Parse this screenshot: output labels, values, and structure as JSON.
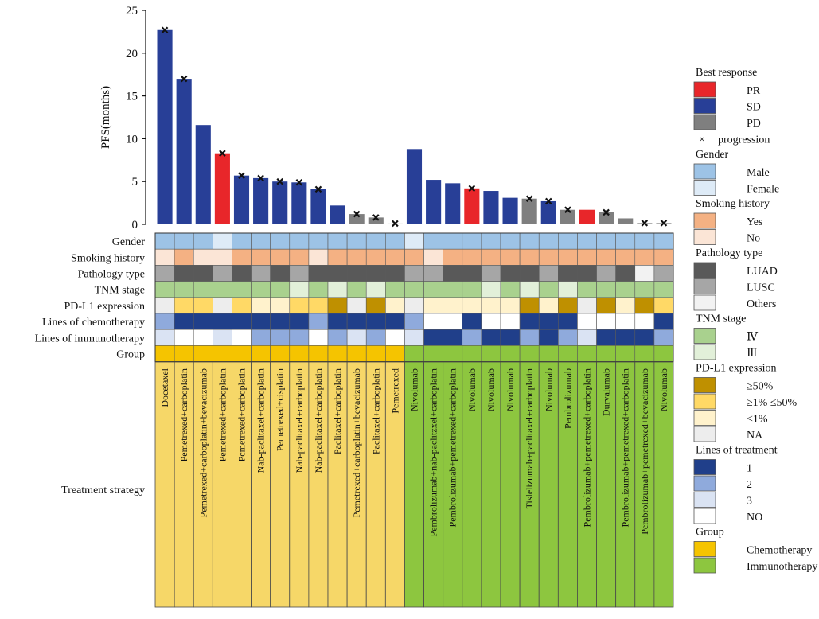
{
  "chart_data": {
    "type": "bar",
    "ylabel": "PFS(months)",
    "ylim": [
      0,
      25
    ],
    "yticks": [
      0,
      5,
      10,
      15,
      20,
      25
    ],
    "patients": [
      {
        "pfs": 22.7,
        "resp": "SD",
        "prog": true,
        "gender": "M",
        "smoke": "N",
        "path": "LUSC",
        "tnm": "IV",
        "pdl1": "NA",
        "chemo": 2,
        "immuno": 3,
        "group": "C",
        "strategy": "Docetaxel"
      },
      {
        "pfs": 17.0,
        "resp": "SD",
        "prog": true,
        "gender": "M",
        "smoke": "Y",
        "path": "LUAD",
        "tnm": "IV",
        "pdl1": "1-50",
        "chemo": 1,
        "immuno": "NO",
        "group": "C",
        "strategy": "Pemetrexed+carboplatin"
      },
      {
        "pfs": 11.6,
        "resp": "SD",
        "prog": false,
        "gender": "M",
        "smoke": "N",
        "path": "LUAD",
        "tnm": "IV",
        "pdl1": "1-50",
        "chemo": 1,
        "immuno": "NO",
        "group": "C",
        "strategy": "Pemetrexed+carboplatin+bevacizumab"
      },
      {
        "pfs": 8.3,
        "resp": "PR",
        "prog": true,
        "gender": "F",
        "smoke": "N",
        "path": "LUSC",
        "tnm": "IV",
        "pdl1": "NA",
        "chemo": 1,
        "immuno": 3,
        "group": "C",
        "strategy": "Pemetrexed+carboplatin"
      },
      {
        "pfs": 5.7,
        "resp": "SD",
        "prog": true,
        "gender": "M",
        "smoke": "Y",
        "path": "LUAD",
        "tnm": "IV",
        "pdl1": "1-50",
        "chemo": 1,
        "immuno": "NO",
        "group": "C",
        "strategy": "Pcmetrexed+carboplatin"
      },
      {
        "pfs": 5.4,
        "resp": "SD",
        "prog": true,
        "gender": "M",
        "smoke": "Y",
        "path": "LUSC",
        "tnm": "IV",
        "pdl1": "<1",
        "chemo": 1,
        "immuno": 2,
        "group": "C",
        "strategy": "Nab-paclitaxel+carboplatin"
      },
      {
        "pfs": 5.0,
        "resp": "SD",
        "prog": true,
        "gender": "M",
        "smoke": "Y",
        "path": "LUAD",
        "tnm": "IV",
        "pdl1": "<1",
        "chemo": 1,
        "immuno": 2,
        "group": "C",
        "strategy": "Pemetrexed+cisplatin"
      },
      {
        "pfs": 4.9,
        "resp": "SD",
        "prog": true,
        "gender": "M",
        "smoke": "Y",
        "path": "LUSC",
        "tnm": "III",
        "pdl1": "1-50",
        "chemo": 1,
        "immuno": 2,
        "group": "C",
        "strategy": "Nab-paclitaxel+carboplatin"
      },
      {
        "pfs": 4.1,
        "resp": "SD",
        "prog": true,
        "gender": "M",
        "smoke": "N",
        "path": "LUAD",
        "tnm": "IV",
        "pdl1": "1-50",
        "chemo": 2,
        "immuno": "NO",
        "group": "C",
        "strategy": "Nab-paclitaxel+carboplatin"
      },
      {
        "pfs": 2.2,
        "resp": "SD",
        "prog": false,
        "gender": "M",
        "smoke": "Y",
        "path": "LUAD",
        "tnm": "III",
        "pdl1": ">=50",
        "chemo": 1,
        "immuno": 2,
        "group": "C",
        "strategy": "Paclitaxel+carboplatin"
      },
      {
        "pfs": 1.2,
        "resp": "PD",
        "prog": true,
        "gender": "M",
        "smoke": "Y",
        "path": "LUAD",
        "tnm": "IV",
        "pdl1": "NA",
        "chemo": 1,
        "immuno": 3,
        "group": "C",
        "strategy": "Pemetrexed+carboplatin+bevacizumab"
      },
      {
        "pfs": 0.8,
        "resp": "PD",
        "prog": true,
        "gender": "M",
        "smoke": "Y",
        "path": "LUAD",
        "tnm": "III",
        "pdl1": ">=50",
        "chemo": 1,
        "immuno": 2,
        "group": "C",
        "strategy": "Paclitaxel+carboplatin"
      },
      {
        "pfs": 0.1,
        "resp": "PD",
        "prog": true,
        "gender": "M",
        "smoke": "Y",
        "path": "LUAD",
        "tnm": "IV",
        "pdl1": "<1",
        "chemo": 1,
        "immuno": "NO",
        "group": "C",
        "strategy": "Pemetrexed"
      },
      {
        "pfs": 8.8,
        "resp": "SD",
        "prog": false,
        "gender": "F",
        "smoke": "Y",
        "path": "LUSC",
        "tnm": "IV",
        "pdl1": "NA",
        "chemo": 2,
        "immuno": 3,
        "group": "I",
        "strategy": "Nivolumab"
      },
      {
        "pfs": 5.2,
        "resp": "SD",
        "prog": false,
        "gender": "M",
        "smoke": "N",
        "path": "LUSC",
        "tnm": "IV",
        "pdl1": "<1",
        "chemo": "NO",
        "immuno": 1,
        "group": "I",
        "strategy": "Pembrolizumab+nab-paclitzxel+carboplatin"
      },
      {
        "pfs": 4.8,
        "resp": "SD",
        "prog": false,
        "gender": "M",
        "smoke": "Y",
        "path": "LUAD",
        "tnm": "IV",
        "pdl1": "<1",
        "chemo": "NO",
        "immuno": 1,
        "group": "I",
        "strategy": "Pembrolizumab+pemetrexed+carboplatin"
      },
      {
        "pfs": 4.2,
        "resp": "PR",
        "prog": true,
        "gender": "M",
        "smoke": "Y",
        "path": "LUAD",
        "tnm": "IV",
        "pdl1": "<1",
        "chemo": 1,
        "immuno": 2,
        "group": "I",
        "strategy": "Nivolumab"
      },
      {
        "pfs": 3.9,
        "resp": "SD",
        "prog": false,
        "gender": "M",
        "smoke": "Y",
        "path": "LUSC",
        "tnm": "III",
        "pdl1": "<1",
        "chemo": "NO",
        "immuno": 1,
        "group": "I",
        "strategy": "Nivolumab"
      },
      {
        "pfs": 3.1,
        "resp": "SD",
        "prog": false,
        "gender": "M",
        "smoke": "Y",
        "path": "LUAD",
        "tnm": "IV",
        "pdl1": "<1",
        "chemo": "NO",
        "immuno": 1,
        "group": "I",
        "strategy": "Nivolumab"
      },
      {
        "pfs": 3.0,
        "resp": "PD",
        "prog": true,
        "gender": "M",
        "smoke": "Y",
        "path": "LUAD",
        "tnm": "III",
        "pdl1": ">=50",
        "chemo": 1,
        "immuno": 2,
        "group": "I",
        "strategy": "Tislelizumab+paclitaxel+carboplatin"
      },
      {
        "pfs": 2.7,
        "resp": "SD",
        "prog": true,
        "gender": "M",
        "smoke": "Y",
        "path": "LUSC",
        "tnm": "IV",
        "pdl1": "<1",
        "chemo": 1,
        "immuno": 1,
        "group": "I",
        "strategy": "Nivolumab"
      },
      {
        "pfs": 1.7,
        "resp": "PD",
        "prog": true,
        "gender": "M",
        "smoke": "Y",
        "path": "LUAD",
        "tnm": "III",
        "pdl1": ">=50",
        "chemo": 1,
        "immuno": 2,
        "group": "I",
        "strategy": "Pembrolizumab"
      },
      {
        "pfs": 1.7,
        "resp": "PR",
        "prog": false,
        "gender": "M",
        "smoke": "Y",
        "path": "LUAD",
        "tnm": "IV",
        "pdl1": "NA",
        "chemo": "NO",
        "immuno": 3,
        "group": "I",
        "strategy": "Pembrolizumab+pemetrexed+carboplatin"
      },
      {
        "pfs": 1.4,
        "resp": "PD",
        "prog": true,
        "gender": "M",
        "smoke": "Y",
        "path": "LUSC",
        "tnm": "IV",
        "pdl1": ">=50",
        "chemo": "NO",
        "immuno": 1,
        "group": "I",
        "strategy": "Durvalumab"
      },
      {
        "pfs": 0.7,
        "resp": "PD",
        "prog": false,
        "gender": "M",
        "smoke": "Y",
        "path": "LUAD",
        "tnm": "IV",
        "pdl1": "<1",
        "chemo": "NO",
        "immuno": 1,
        "group": "I",
        "strategy": "Pembrolizumab+pemetrexed+carboplatin"
      },
      {
        "pfs": 0.15,
        "resp": "PD",
        "prog": true,
        "gender": "M",
        "smoke": "Y",
        "path": "Others",
        "tnm": "IV",
        "pdl1": ">=50",
        "chemo": "NO",
        "immuno": 1,
        "group": "I",
        "strategy": "Pembrolizumab+pemetrexed+bevacizumab"
      },
      {
        "pfs": 0.15,
        "resp": "PD",
        "prog": true,
        "gender": "M",
        "smoke": "Y",
        "path": "LUSC",
        "tnm": "IV",
        "pdl1": "1-50",
        "chemo": 1,
        "immuno": 2,
        "group": "I",
        "strategy": "Nivolumab"
      }
    ]
  },
  "row_labels": [
    "Gender",
    "Smoking history",
    "Pathology type",
    "TNM stage",
    "PD-L1 expression",
    "Lines of chemotherapy",
    "Lines of immunotherapy",
    "Group"
  ],
  "strategy_label": "Treatment strategy",
  "legend": [
    {
      "title": "Best response",
      "items": [
        {
          "key": "PR",
          "label": "PR",
          "color": "#e8262a"
        },
        {
          "key": "SD",
          "label": "SD",
          "color": "#283f97"
        },
        {
          "key": "PD",
          "label": "PD",
          "color": "#7f7f7f"
        },
        {
          "key": "x",
          "label": "progression",
          "symbol": "×"
        }
      ]
    },
    {
      "title": "Gender",
      "items": [
        {
          "key": "M",
          "label": "Male",
          "color": "#9dc3e6"
        },
        {
          "key": "F",
          "label": "Female",
          "color": "#deebf7"
        }
      ]
    },
    {
      "title": "Smoking history",
      "items": [
        {
          "key": "Y",
          "label": "Yes",
          "color": "#f4b183"
        },
        {
          "key": "N",
          "label": "No",
          "color": "#fbe5d6"
        }
      ]
    },
    {
      "title": "Pathology type",
      "items": [
        {
          "key": "LUAD",
          "label": "LUAD",
          "color": "#595959"
        },
        {
          "key": "LUSC",
          "label": "LUSC",
          "color": "#a6a6a6"
        },
        {
          "key": "Others",
          "label": "Others",
          "color": "#f2f2f2"
        }
      ]
    },
    {
      "title": "TNM stage",
      "items": [
        {
          "key": "IV",
          "label": "Ⅳ",
          "color": "#a9d18e"
        },
        {
          "key": "III",
          "label": "Ⅲ",
          "color": "#e2f0d9"
        }
      ]
    },
    {
      "title": "PD-L1 expression",
      "items": [
        {
          "key": ">=50",
          "label": "≥50%",
          "color": "#bf9000"
        },
        {
          "key": "1-50",
          "label": "≥1% ≤50%",
          "color": "#ffd966"
        },
        {
          "key": "<1",
          "label": "<1%",
          "color": "#fff2cc"
        },
        {
          "key": "NA",
          "label": "NA",
          "color": "#ededed"
        }
      ]
    },
    {
      "title": "Lines of treatment",
      "items": [
        {
          "key": "1",
          "label": "1",
          "color": "#203f8a"
        },
        {
          "key": "2",
          "label": "2",
          "color": "#8faadc"
        },
        {
          "key": "3",
          "label": "3",
          "color": "#dae3f3"
        },
        {
          "key": "NO",
          "label": "NO",
          "color": "#ffffff"
        }
      ]
    },
    {
      "title": "Group",
      "items": [
        {
          "key": "C",
          "label": "Chemotherapy",
          "color": "#f5c400"
        },
        {
          "key": "I",
          "label": "Immunotherapy",
          "color": "#8dc63f"
        }
      ]
    }
  ],
  "strip_colors": {
    "C": "#f6d768",
    "I": "#8dc63f"
  }
}
